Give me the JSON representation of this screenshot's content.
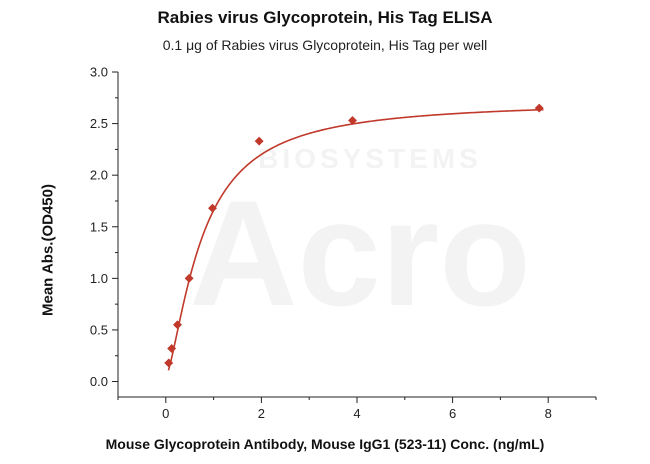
{
  "chart_data": {
    "type": "scatter",
    "title": "Rabies virus Glycoprotein, His Tag ELISA",
    "subtitle": "0.1 μg of Rabies virus Glycoprotein, His Tag per well",
    "xlabel": "Mouse Glycoprotein Antibody, Mouse IgG1 (523-11) Conc. (ng/mL)",
    "ylabel": "Mean Abs.(OD450)",
    "xlim": [
      -1,
      9
    ],
    "ylim": [
      -0.15,
      3.0
    ],
    "x_ticks": [
      0,
      2,
      4,
      6,
      8
    ],
    "y_ticks": [
      0.0,
      0.5,
      1.0,
      1.5,
      2.0,
      2.5,
      3.0
    ],
    "x_tick_labels": [
      "0",
      "2",
      "4",
      "6",
      "8"
    ],
    "y_tick_labels": [
      "0.0",
      "0.5",
      "1.0",
      "1.5",
      "2.0",
      "2.5",
      "3.0"
    ],
    "grid": false,
    "legend": "none",
    "series": [
      {
        "color": "#c0392b",
        "marker": "diamond",
        "fit": "4PL curve",
        "x": [
          0.061,
          0.122,
          0.244,
          0.488,
          0.977,
          1.953,
          3.906,
          7.813
        ],
        "y": [
          0.18,
          0.32,
          0.55,
          1.0,
          1.68,
          2.33,
          2.53,
          2.65
        ]
      }
    ],
    "watermark": {
      "text_large": "Acro",
      "text_small": "BIOSYSTEMS"
    }
  }
}
